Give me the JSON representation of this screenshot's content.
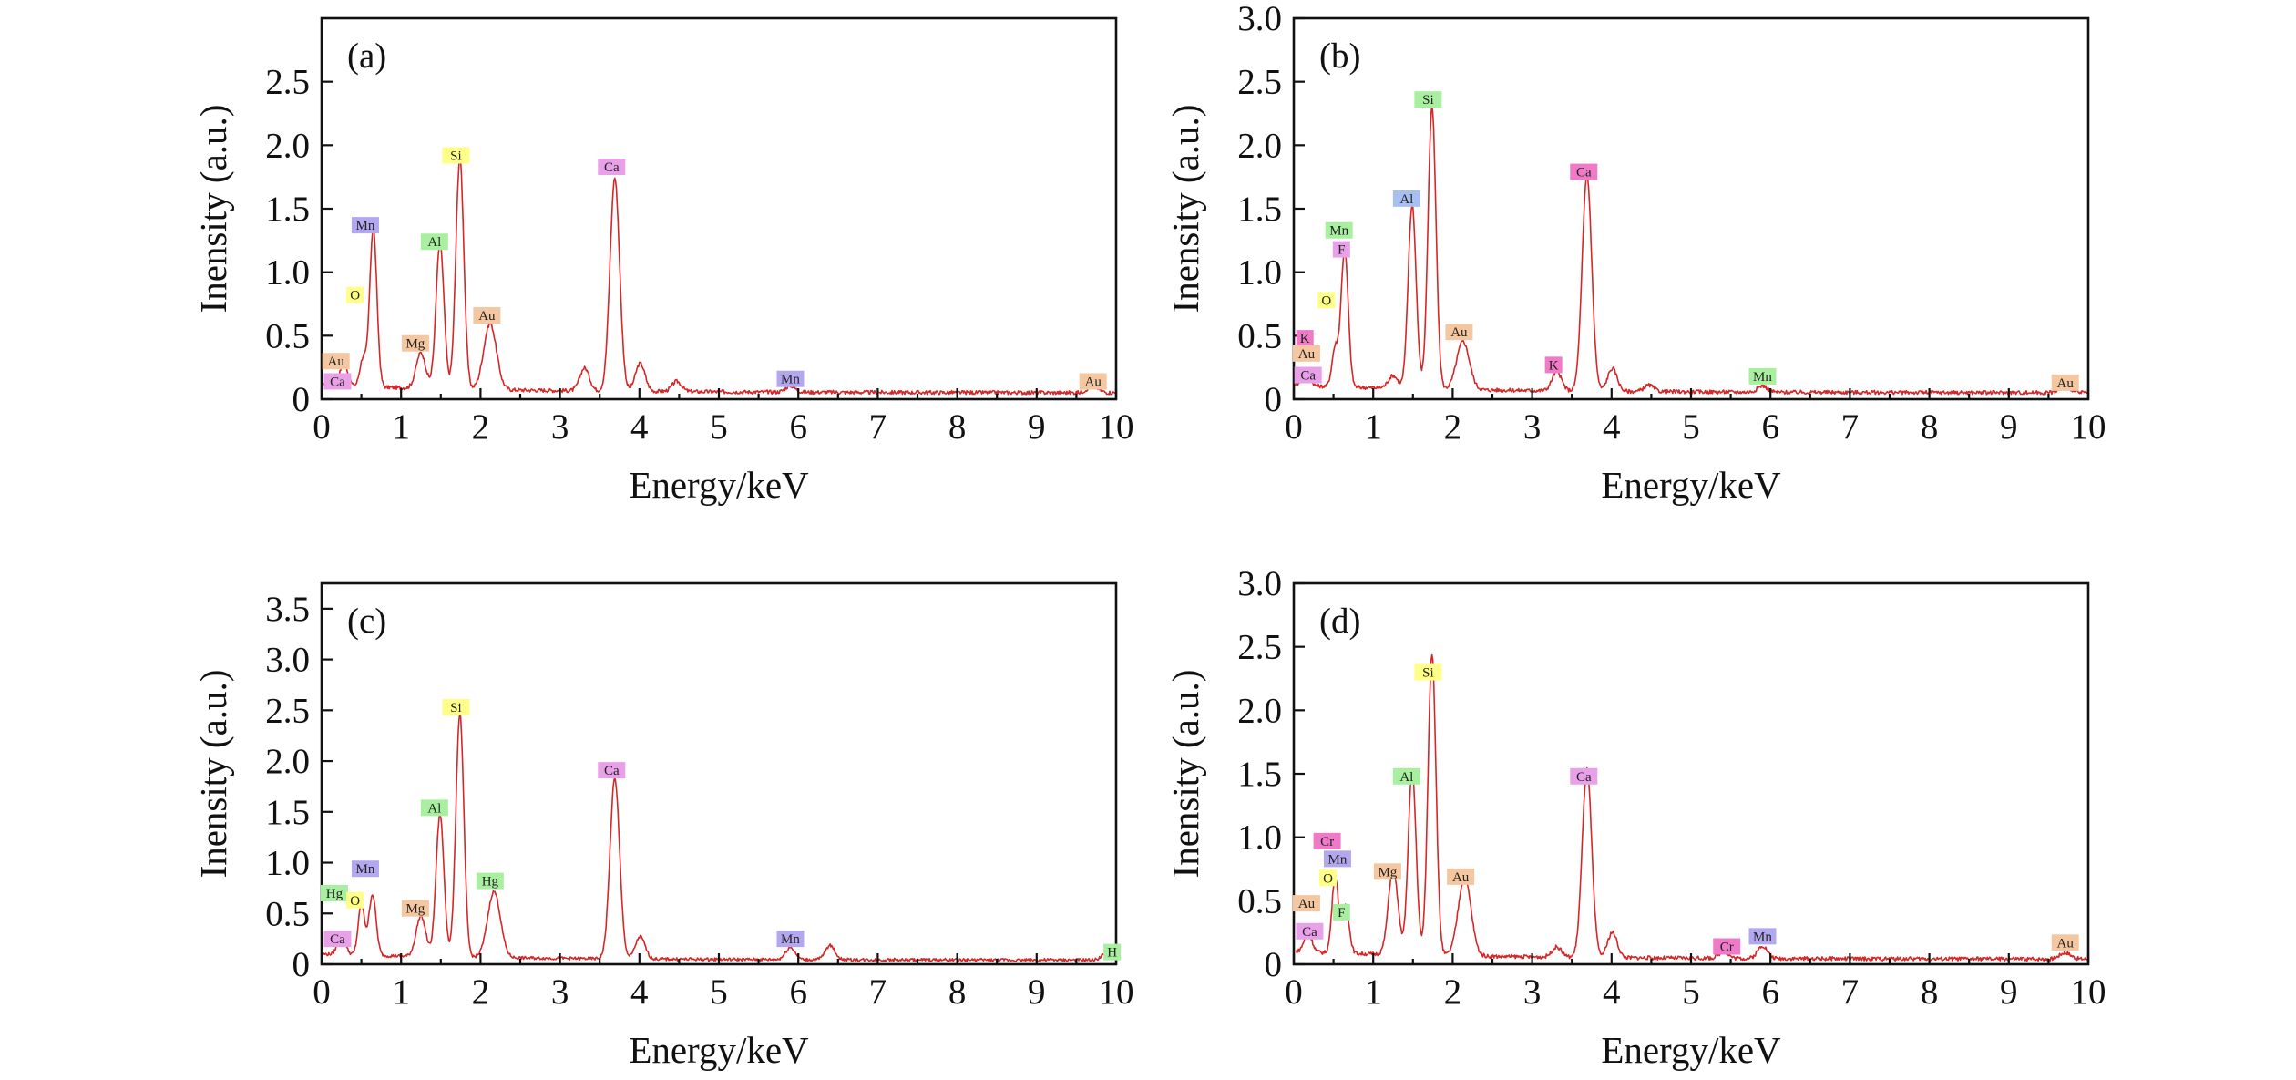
{
  "chart_data": [
    {
      "type": "line",
      "panel_label": "(a)",
      "xlabel": "Energy/keV",
      "ylabel": "Inensity (a.u.)",
      "xlim": [
        0,
        10
      ],
      "ylim": [
        0,
        3.0
      ],
      "x_ticks": [
        "0",
        "1",
        "2",
        "3",
        "4",
        "5",
        "6",
        "7",
        "8",
        "9",
        "10"
      ],
      "y_ticks": [
        0,
        0.5,
        1.0,
        1.5,
        2.0,
        2.5
      ],
      "y_tick_labels": [
        "0",
        "0.5",
        "1.0",
        "1.5",
        "2.0",
        "2.5"
      ],
      "line_color": "#d62728",
      "peaks": [
        {
          "x": 0.28,
          "y": 0.18,
          "w": 0.05
        },
        {
          "x": 0.52,
          "y": 0.22,
          "w": 0.04
        },
        {
          "x": 0.65,
          "y": 1.25,
          "w": 0.045
        },
        {
          "x": 1.25,
          "y": 0.28,
          "w": 0.06
        },
        {
          "x": 1.49,
          "y": 1.15,
          "w": 0.05
        },
        {
          "x": 1.74,
          "y": 1.82,
          "w": 0.05
        },
        {
          "x": 2.12,
          "y": 0.52,
          "w": 0.08
        },
        {
          "x": 3.31,
          "y": 0.18,
          "w": 0.06
        },
        {
          "x": 3.69,
          "y": 1.68,
          "w": 0.06
        },
        {
          "x": 4.01,
          "y": 0.22,
          "w": 0.06
        },
        {
          "x": 4.47,
          "y": 0.08,
          "w": 0.06
        },
        {
          "x": 5.9,
          "y": 0.05,
          "w": 0.06
        },
        {
          "x": 9.71,
          "y": 0.05,
          "w": 0.07
        }
      ],
      "baseline": 0.05,
      "labels": [
        {
          "text": "Au",
          "x": 0.18,
          "y": 0.3,
          "color": "#f5c7a0"
        },
        {
          "text": "Ca",
          "x": 0.2,
          "y": 0.14,
          "color": "#e8a0e8"
        },
        {
          "text": "O",
          "x": 0.42,
          "y": 0.82,
          "color": "#ffff88"
        },
        {
          "text": "Mn",
          "x": 0.55,
          "y": 1.37,
          "color": "#b3a8f0"
        },
        {
          "text": "Mg",
          "x": 1.18,
          "y": 0.44,
          "color": "#f5c7a0"
        },
        {
          "text": "Al",
          "x": 1.42,
          "y": 1.24,
          "color": "#a8f0a0"
        },
        {
          "text": "Si",
          "x": 1.69,
          "y": 1.92,
          "color": "#ffff88"
        },
        {
          "text": "Au",
          "x": 2.08,
          "y": 0.66,
          "color": "#f5c7a0"
        },
        {
          "text": "Ca",
          "x": 3.65,
          "y": 1.83,
          "color": "#e8a0e8"
        },
        {
          "text": "Mn",
          "x": 5.9,
          "y": 0.16,
          "color": "#b3a8f0"
        },
        {
          "text": "Au",
          "x": 9.71,
          "y": 0.14,
          "color": "#f5c7a0"
        }
      ]
    },
    {
      "type": "line",
      "panel_label": "(b)",
      "xlabel": "Energy/keV",
      "ylabel": "Inensity (a.u.)",
      "xlim": [
        0,
        10
      ],
      "ylim": [
        0,
        3.0
      ],
      "x_ticks": [
        "0",
        "1",
        "2",
        "3",
        "4",
        "5",
        "6",
        "7",
        "8",
        "9",
        "10"
      ],
      "y_ticks": [
        0,
        0.5,
        1.0,
        1.5,
        2.0,
        2.5,
        3.0
      ],
      "y_tick_labels": [
        "0",
        "0.5",
        "1.0",
        "1.5",
        "2.0",
        "2.5",
        "3.0"
      ],
      "line_color": "#d62728",
      "peaks": [
        {
          "x": 0.15,
          "y": 0.12,
          "w": 0.05
        },
        {
          "x": 0.52,
          "y": 0.3,
          "w": 0.04
        },
        {
          "x": 0.64,
          "y": 1.08,
          "w": 0.045
        },
        {
          "x": 1.25,
          "y": 0.1,
          "w": 0.06
        },
        {
          "x": 1.49,
          "y": 1.45,
          "w": 0.05
        },
        {
          "x": 1.74,
          "y": 2.22,
          "w": 0.05
        },
        {
          "x": 2.13,
          "y": 0.38,
          "w": 0.08
        },
        {
          "x": 3.31,
          "y": 0.15,
          "w": 0.06
        },
        {
          "x": 3.69,
          "y": 1.7,
          "w": 0.06
        },
        {
          "x": 4.01,
          "y": 0.18,
          "w": 0.06
        },
        {
          "x": 4.47,
          "y": 0.05,
          "w": 0.06
        },
        {
          "x": 5.9,
          "y": 0.05,
          "w": 0.06
        },
        {
          "x": 9.71,
          "y": 0.05,
          "w": 0.07
        }
      ],
      "baseline": 0.05,
      "labels": [
        {
          "text": "K",
          "x": 0.14,
          "y": 0.48,
          "color": "#f07ac8"
        },
        {
          "text": "Au",
          "x": 0.16,
          "y": 0.36,
          "color": "#f5c7a0"
        },
        {
          "text": "Ca",
          "x": 0.18,
          "y": 0.19,
          "color": "#e8a0e8"
        },
        {
          "text": "O",
          "x": 0.41,
          "y": 0.78,
          "color": "#ffff88"
        },
        {
          "text": "F",
          "x": 0.6,
          "y": 1.18,
          "color": "#e8a0e8"
        },
        {
          "text": "Mn",
          "x": 0.57,
          "y": 1.33,
          "color": "#a8f0a0"
        },
        {
          "text": "Al",
          "x": 1.42,
          "y": 1.58,
          "color": "#a8c0f0"
        },
        {
          "text": "Si",
          "x": 1.69,
          "y": 2.36,
          "color": "#a8f0a0"
        },
        {
          "text": "Au",
          "x": 2.08,
          "y": 0.53,
          "color": "#f5c7a0"
        },
        {
          "text": "K",
          "x": 3.27,
          "y": 0.27,
          "color": "#f07ac8"
        },
        {
          "text": "Ca",
          "x": 3.65,
          "y": 1.79,
          "color": "#f07ac8"
        },
        {
          "text": "Mn",
          "x": 5.9,
          "y": 0.18,
          "color": "#a8f0a0"
        },
        {
          "text": "Au",
          "x": 9.71,
          "y": 0.13,
          "color": "#f5c7a0"
        }
      ]
    },
    {
      "type": "line",
      "panel_label": "(c)",
      "xlabel": "Energy/keV",
      "ylabel": "Inensity (a.u.)",
      "xlim": [
        0,
        10
      ],
      "ylim": [
        0,
        3.75
      ],
      "x_ticks": [
        "0",
        "1",
        "2",
        "3",
        "4",
        "5",
        "6",
        "7",
        "8",
        "9",
        "10"
      ],
      "y_ticks": [
        0,
        0.5,
        1.0,
        1.5,
        2.0,
        2.5,
        3.0,
        3.5
      ],
      "y_tick_labels": [
        "0",
        "0.5",
        "1.0",
        "1.5",
        "2.0",
        "2.5",
        "3.0",
        "3.5"
      ],
      "line_color": "#d62728",
      "peaks": [
        {
          "x": 0.25,
          "y": 0.18,
          "w": 0.05
        },
        {
          "x": 0.5,
          "y": 0.5,
          "w": 0.04
        },
        {
          "x": 0.64,
          "y": 0.6,
          "w": 0.045
        },
        {
          "x": 1.25,
          "y": 0.4,
          "w": 0.06
        },
        {
          "x": 1.49,
          "y": 1.4,
          "w": 0.05
        },
        {
          "x": 1.74,
          "y": 2.4,
          "w": 0.05
        },
        {
          "x": 2.17,
          "y": 0.65,
          "w": 0.08
        },
        {
          "x": 3.69,
          "y": 1.78,
          "w": 0.06
        },
        {
          "x": 4.01,
          "y": 0.22,
          "w": 0.06
        },
        {
          "x": 5.9,
          "y": 0.12,
          "w": 0.06
        },
        {
          "x": 6.4,
          "y": 0.14,
          "w": 0.06
        },
        {
          "x": 9.9,
          "y": 0.08,
          "w": 0.07
        }
      ],
      "baseline": 0.04,
      "labels": [
        {
          "text": "Hg",
          "x": 0.16,
          "y": 0.7,
          "color": "#a8f0a0"
        },
        {
          "text": "Ca",
          "x": 0.2,
          "y": 0.25,
          "color": "#e8a0e8"
        },
        {
          "text": "O",
          "x": 0.42,
          "y": 0.63,
          "color": "#ffff88"
        },
        {
          "text": "Mn",
          "x": 0.55,
          "y": 0.94,
          "color": "#b3a8f0"
        },
        {
          "text": "Mg",
          "x": 1.18,
          "y": 0.55,
          "color": "#f5c7a0"
        },
        {
          "text": "Al",
          "x": 1.42,
          "y": 1.54,
          "color": "#a8f0a0"
        },
        {
          "text": "Si",
          "x": 1.69,
          "y": 2.53,
          "color": "#ffff88"
        },
        {
          "text": "Hg",
          "x": 2.12,
          "y": 0.82,
          "color": "#a8f0a0"
        },
        {
          "text": "Ca",
          "x": 3.65,
          "y": 1.91,
          "color": "#e8a0e8"
        },
        {
          "text": "Mn",
          "x": 5.9,
          "y": 0.25,
          "color": "#b3a8f0"
        },
        {
          "text": "H",
          "x": 9.95,
          "y": 0.12,
          "color": "#a8f0a0"
        }
      ]
    },
    {
      "type": "line",
      "panel_label": "(d)",
      "xlabel": "Energy/keV",
      "ylabel": "Inensity (a.u.)",
      "xlim": [
        0,
        10
      ],
      "ylim": [
        0,
        3.0
      ],
      "x_ticks": [
        "0",
        "1",
        "2",
        "3",
        "4",
        "5",
        "6",
        "7",
        "8",
        "9",
        "10"
      ],
      "y_ticks": [
        0,
        0.5,
        1.0,
        1.5,
        2.0,
        2.5,
        3.0
      ],
      "y_tick_labels": [
        "0",
        "0.5",
        "1.0",
        "1.5",
        "2.0",
        "2.5",
        "3.0"
      ],
      "line_color": "#d62728",
      "peaks": [
        {
          "x": 0.18,
          "y": 0.15,
          "w": 0.05
        },
        {
          "x": 0.52,
          "y": 0.6,
          "w": 0.04
        },
        {
          "x": 0.65,
          "y": 0.38,
          "w": 0.045
        },
        {
          "x": 1.25,
          "y": 0.68,
          "w": 0.06
        },
        {
          "x": 1.49,
          "y": 1.45,
          "w": 0.05
        },
        {
          "x": 1.74,
          "y": 2.38,
          "w": 0.05
        },
        {
          "x": 2.15,
          "y": 0.62,
          "w": 0.08
        },
        {
          "x": 3.31,
          "y": 0.08,
          "w": 0.06
        },
        {
          "x": 3.69,
          "y": 1.48,
          "w": 0.06
        },
        {
          "x": 4.01,
          "y": 0.2,
          "w": 0.06
        },
        {
          "x": 5.41,
          "y": 0.05,
          "w": 0.06
        },
        {
          "x": 5.9,
          "y": 0.1,
          "w": 0.06
        },
        {
          "x": 9.71,
          "y": 0.05,
          "w": 0.07
        }
      ],
      "baseline": 0.04,
      "labels": [
        {
          "text": "Au",
          "x": 0.16,
          "y": 0.48,
          "color": "#f5c7a0"
        },
        {
          "text": "Ca",
          "x": 0.2,
          "y": 0.26,
          "color": "#e8a0e8"
        },
        {
          "text": "Cr",
          "x": 0.42,
          "y": 0.97,
          "color": "#f07ac8"
        },
        {
          "text": "Mn",
          "x": 0.55,
          "y": 0.83,
          "color": "#b3a8f0"
        },
        {
          "text": "O",
          "x": 0.43,
          "y": 0.68,
          "color": "#ffff88"
        },
        {
          "text": "F",
          "x": 0.6,
          "y": 0.41,
          "color": "#a8f0a0"
        },
        {
          "text": "Mg",
          "x": 1.18,
          "y": 0.73,
          "color": "#f5c7a0"
        },
        {
          "text": "Al",
          "x": 1.42,
          "y": 1.48,
          "color": "#a8f0a0"
        },
        {
          "text": "Si",
          "x": 1.69,
          "y": 2.3,
          "color": "#ffff88"
        },
        {
          "text": "Au",
          "x": 2.1,
          "y": 0.69,
          "color": "#f5c7a0"
        },
        {
          "text": "Ca",
          "x": 3.65,
          "y": 1.48,
          "color": "#e8a0e8"
        },
        {
          "text": "Cr",
          "x": 5.45,
          "y": 0.14,
          "color": "#f07ac8"
        },
        {
          "text": "Mn",
          "x": 5.9,
          "y": 0.22,
          "color": "#b3a8f0"
        },
        {
          "text": "Au",
          "x": 9.71,
          "y": 0.17,
          "color": "#f5c7a0"
        }
      ]
    }
  ]
}
